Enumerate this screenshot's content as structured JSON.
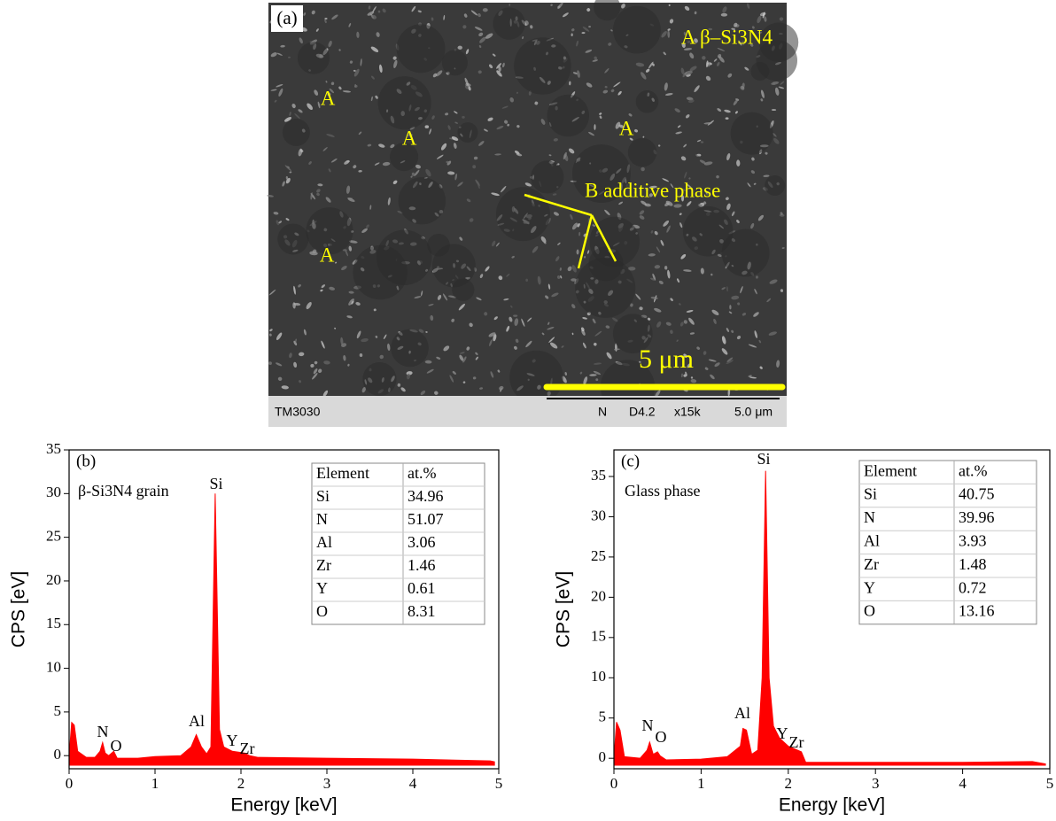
{
  "image": {
    "panel_label": "(a)",
    "legend_a": "A β–Si3N4",
    "phase_labels": [
      "A",
      "A",
      "A",
      "A"
    ],
    "legend_b": "B additive phase",
    "scale_text": "5 μm",
    "footer": [
      "TM3030",
      "N",
      "D4.2",
      "x15k",
      "5.0 μm"
    ]
  },
  "chart_data": [
    {
      "type": "area",
      "panel_label": "(b)",
      "subtitle": "β-Si3N4 grain",
      "x_label": "Energy [keV]",
      "y_label": "CPS [eV]",
      "color": "#ff0000",
      "x": [
        0,
        0.03,
        0.06,
        0.1,
        0.2,
        0.3,
        0.36,
        0.39,
        0.42,
        0.46,
        0.52,
        0.56,
        0.8,
        1,
        1.3,
        1.42,
        1.48,
        1.54,
        1.6,
        1.65,
        1.7,
        1.75,
        1.8,
        1.9,
        2.04,
        2.1,
        2.2,
        3,
        4,
        4.9,
        4.95
      ],
      "values": [
        0,
        3.8,
        3.5,
        0.5,
        -0.2,
        -0.2,
        0.5,
        1.5,
        0.3,
        0,
        0.5,
        -0.3,
        -0.3,
        -0.1,
        0,
        1,
        2.4,
        1,
        0.2,
        1,
        30,
        3,
        1,
        0.5,
        0.3,
        0,
        -0.2,
        -0.3,
        -0.4,
        -0.6,
        -0.7
      ],
      "xlim": [
        0,
        5
      ],
      "xticks": [
        0,
        1,
        2,
        3,
        4,
        5
      ],
      "ylim": [
        -1.5,
        35
      ],
      "yticks": [
        0,
        5,
        10,
        15,
        20,
        25,
        30,
        35
      ],
      "annotations": [
        "Si",
        "N",
        "O",
        "Al",
        "Y",
        "Zr"
      ],
      "table": {
        "header": [
          "Element",
          "at.%"
        ],
        "rows": [
          [
            "Si",
            "34.96"
          ],
          [
            "N",
            "51.07"
          ],
          [
            "Al",
            "3.06"
          ],
          [
            "Zr",
            "1.46"
          ],
          [
            "Y",
            "0.61"
          ],
          [
            "O",
            "8.31"
          ]
        ]
      }
    },
    {
      "type": "area",
      "panel_label": "(c)",
      "subtitle": "Glass phase",
      "x_label": "Energy [keV]",
      "y_label": "CPS [eV]",
      "color": "#ff0000",
      "x": [
        0,
        0.03,
        0.07,
        0.12,
        0.3,
        0.38,
        0.41,
        0.45,
        0.5,
        0.53,
        0.6,
        1,
        1.3,
        1.45,
        1.48,
        1.52,
        1.58,
        1.65,
        1.7,
        1.74,
        1.78,
        1.83,
        1.9,
        2,
        2.15,
        2.2,
        3,
        4,
        4.8,
        4.95
      ],
      "values": [
        0,
        4.5,
        3.5,
        0.2,
        0,
        1,
        2,
        0.5,
        0.8,
        0.3,
        -0.2,
        -0.1,
        0.2,
        1.5,
        3.7,
        3.5,
        0.5,
        1,
        10,
        35.7,
        10,
        4,
        2.5,
        1.5,
        0.8,
        -0.5,
        -0.5,
        -0.5,
        -0.4,
        -0.7
      ],
      "xlim": [
        0,
        5
      ],
      "xticks": [
        0,
        1,
        2,
        3,
        4,
        5
      ],
      "ylim": [
        -1.3,
        38.3
      ],
      "yticks": [
        0,
        5,
        10,
        15,
        20,
        25,
        30,
        35
      ],
      "annotations": [
        "Si",
        "N",
        "O",
        "Al",
        "Y",
        "Zr"
      ],
      "table": {
        "header": [
          "Element",
          "at.%"
        ],
        "rows": [
          [
            "Si",
            "40.75"
          ],
          [
            "N",
            "39.96"
          ],
          [
            "Al",
            "3.93"
          ],
          [
            "Zr",
            "1.48"
          ],
          [
            "Y",
            "0.72"
          ],
          [
            "O",
            "13.16"
          ]
        ]
      }
    }
  ]
}
